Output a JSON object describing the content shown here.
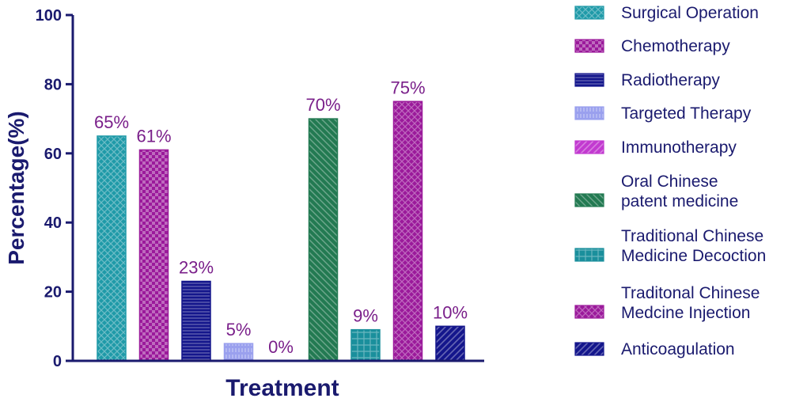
{
  "chart_data": {
    "type": "bar",
    "categories": [
      "Surgical Operation",
      "Chemotherapy",
      "Radiotherapy",
      "Targeted Therapy",
      "Immunotherapy",
      "Oral Chinese patent medicine",
      "Traditional Chinese Medicine Decoction",
      "Traditonal Chinese Medcine Injection",
      "Anticoagulation"
    ],
    "values": [
      65,
      61,
      23,
      5,
      0,
      70,
      9,
      75,
      10
    ],
    "data_labels": [
      "65%",
      "61%",
      "23%",
      "5%",
      "0%",
      "70%",
      "9%",
      "75%",
      "10%"
    ],
    "title": "",
    "xlabel": "Treatment",
    "ylabel": "Percentage(%)",
    "ylim": [
      0,
      100
    ],
    "yticks": [
      0,
      20,
      40,
      60,
      80,
      100
    ],
    "grid": false,
    "legend_position": "right",
    "legend_entries": [
      [
        "Surgical Operation"
      ],
      [
        "Chemotherapy"
      ],
      [
        "Radiotherapy"
      ],
      [
        "Targeted Therapy"
      ],
      [
        "Immunotherapy"
      ],
      [
        "Oral Chinese",
        "patent medicine"
      ],
      [
        "Traditional Chinese",
        "Medicine Decoction"
      ],
      [
        "Traditonal Chinese",
        "Medcine Injection"
      ],
      [
        "Anticoagulation"
      ]
    ],
    "colors": [
      "#1f9aa8",
      "#9b1a9b",
      "#14168c",
      "#9aa0ee",
      "#c23ad0",
      "#237a52",
      "#1a8f9c",
      "#9b1a9b",
      "#14168c"
    ],
    "patterns": [
      "cross",
      "check",
      "hline",
      "vline",
      "diag",
      "diag2",
      "grid",
      "cross",
      "diag"
    ],
    "axis_color": "#1a1a6e",
    "label_color": "#7a1f8a"
  }
}
